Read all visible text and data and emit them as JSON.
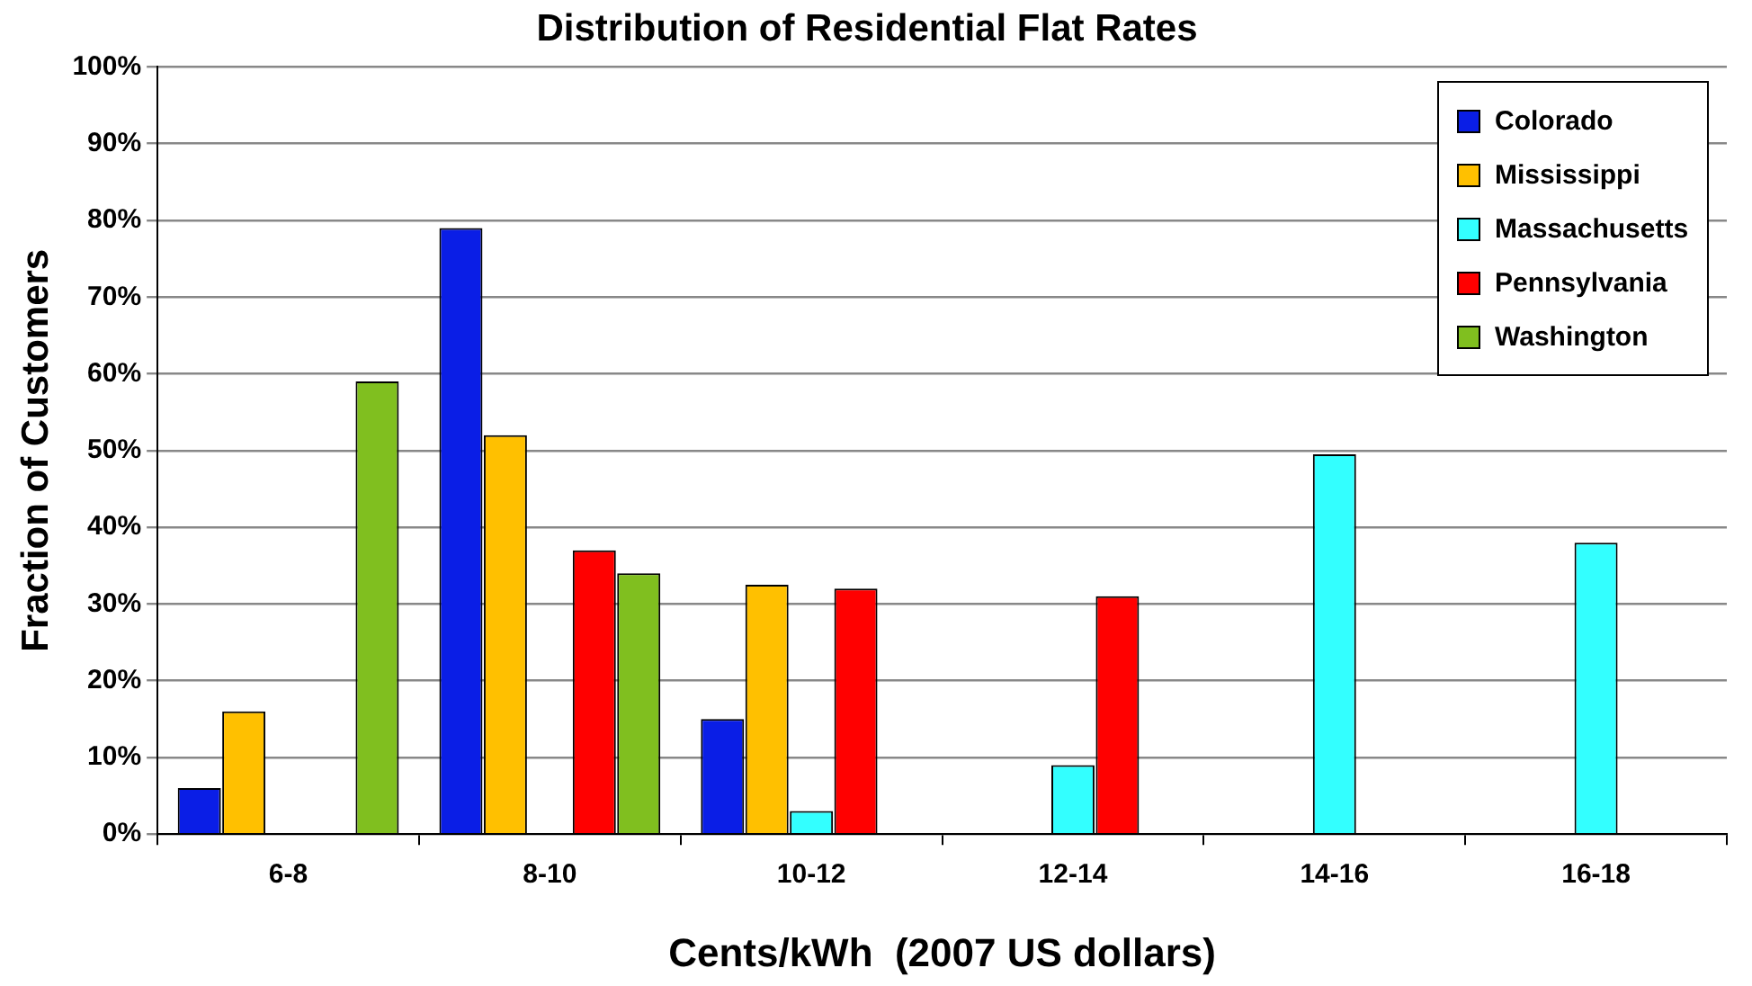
{
  "chart_data": {
    "type": "bar",
    "title": "Distribution of Residential Flat Rates",
    "xlabel": "Cents/kWh  (2007 US dollars)",
    "ylabel": "Fraction of Customers",
    "categories": [
      "6-8",
      "8-10",
      "10-12",
      "12-14",
      "14-16",
      "16-18"
    ],
    "series": [
      {
        "name": "Colorado",
        "color": "#0a1ee6",
        "values": [
          6,
          79,
          15,
          0,
          0,
          0
        ]
      },
      {
        "name": "Mississippi",
        "color": "#ffc000",
        "values": [
          16,
          52,
          32.5,
          0,
          0,
          0
        ]
      },
      {
        "name": "Massachusetts",
        "color": "#33ffff",
        "values": [
          0,
          0,
          3,
          9,
          49.5,
          38
        ]
      },
      {
        "name": "Pennsylvania",
        "color": "#ff0000",
        "values": [
          0,
          37,
          32,
          31,
          0,
          0
        ]
      },
      {
        "name": "Washington",
        "color": "#80bf1f",
        "values": [
          59,
          34,
          0,
          0,
          0,
          0
        ]
      }
    ],
    "ylim": [
      0,
      100
    ],
    "yticks": [
      {
        "value": 0,
        "label": "0%"
      },
      {
        "value": 10,
        "label": "10%"
      },
      {
        "value": 20,
        "label": "20%"
      },
      {
        "value": 30,
        "label": "30%"
      },
      {
        "value": 40,
        "label": "40%"
      },
      {
        "value": 50,
        "label": "50%"
      },
      {
        "value": 60,
        "label": "60%"
      },
      {
        "value": 70,
        "label": "70%"
      },
      {
        "value": 80,
        "label": "80%"
      },
      {
        "value": 90,
        "label": "90%"
      },
      {
        "value": 100,
        "label": "100%"
      }
    ],
    "grid": "y",
    "legend": "top right"
  }
}
